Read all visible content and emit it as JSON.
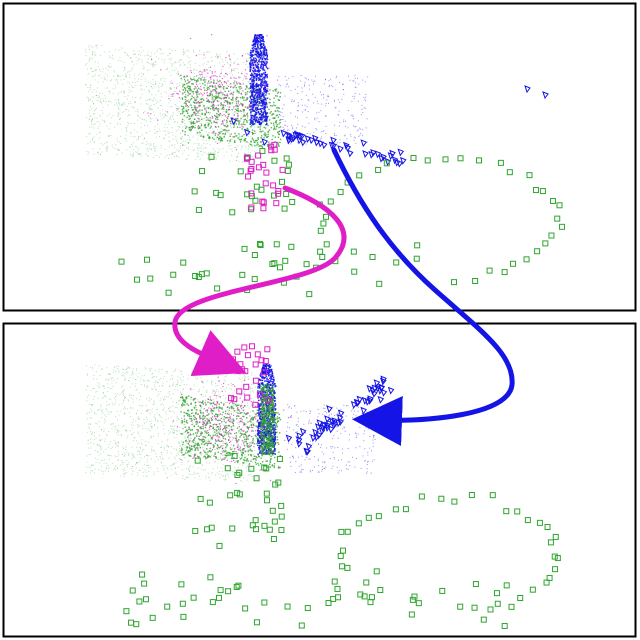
{
  "panels": [
    {
      "id": "top",
      "description_hidden": "",
      "seed": 11
    },
    {
      "id": "bottom",
      "description_hidden": "",
      "seed": 29
    }
  ],
  "colors": {
    "green": "#2fa52f",
    "blue": "#1414e6",
    "magenta": "#e01ec8",
    "border": "#000000",
    "background": "#ffffff"
  },
  "arrows": [
    {
      "name": "magenta-arrow",
      "color": "magenta"
    },
    {
      "name": "blue-arrow",
      "color": "blue"
    }
  ]
}
